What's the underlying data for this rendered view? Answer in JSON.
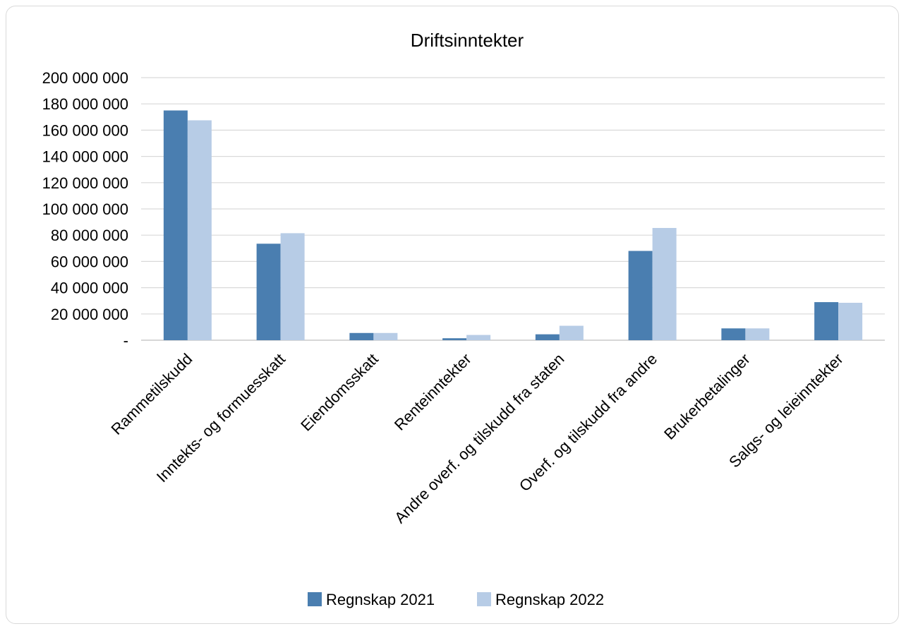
{
  "chart_data": {
    "type": "bar",
    "title": "Driftsinntekter",
    "categories": [
      "Rammetilskudd",
      "Inntekts- og formuesskatt",
      "Eiendomsskatt",
      "Renteinntekter",
      "Andre overf. og tilskudd fra staten",
      "Overf. og tilskudd fra andre",
      "Brukerbetalinger",
      "Salgs- og leieinntekter"
    ],
    "series": [
      {
        "name": "Regnskap 2021",
        "color": "#4a7eb0",
        "values": [
          175000000,
          73500000,
          5500000,
          1500000,
          4500000,
          68000000,
          9000000,
          29000000
        ]
      },
      {
        "name": "Regnskap 2022",
        "color": "#b7cce6",
        "values": [
          167500000,
          81500000,
          5500000,
          4000000,
          11000000,
          85500000,
          9000000,
          28500000
        ]
      }
    ],
    "ylim": [
      0,
      200000000
    ],
    "yticks": [
      0,
      20000000,
      40000000,
      60000000,
      80000000,
      100000000,
      120000000,
      140000000,
      160000000,
      180000000,
      200000000
    ],
    "ytick_labels": [
      "-",
      "20 000 000",
      "40 000 000",
      "60 000 000",
      "80 000 000",
      "100 000 000",
      "120 000 000",
      "140 000 000",
      "160 000 000",
      "180 000 000",
      "200 000 000"
    ],
    "grid": true,
    "legend_position": "bottom"
  }
}
